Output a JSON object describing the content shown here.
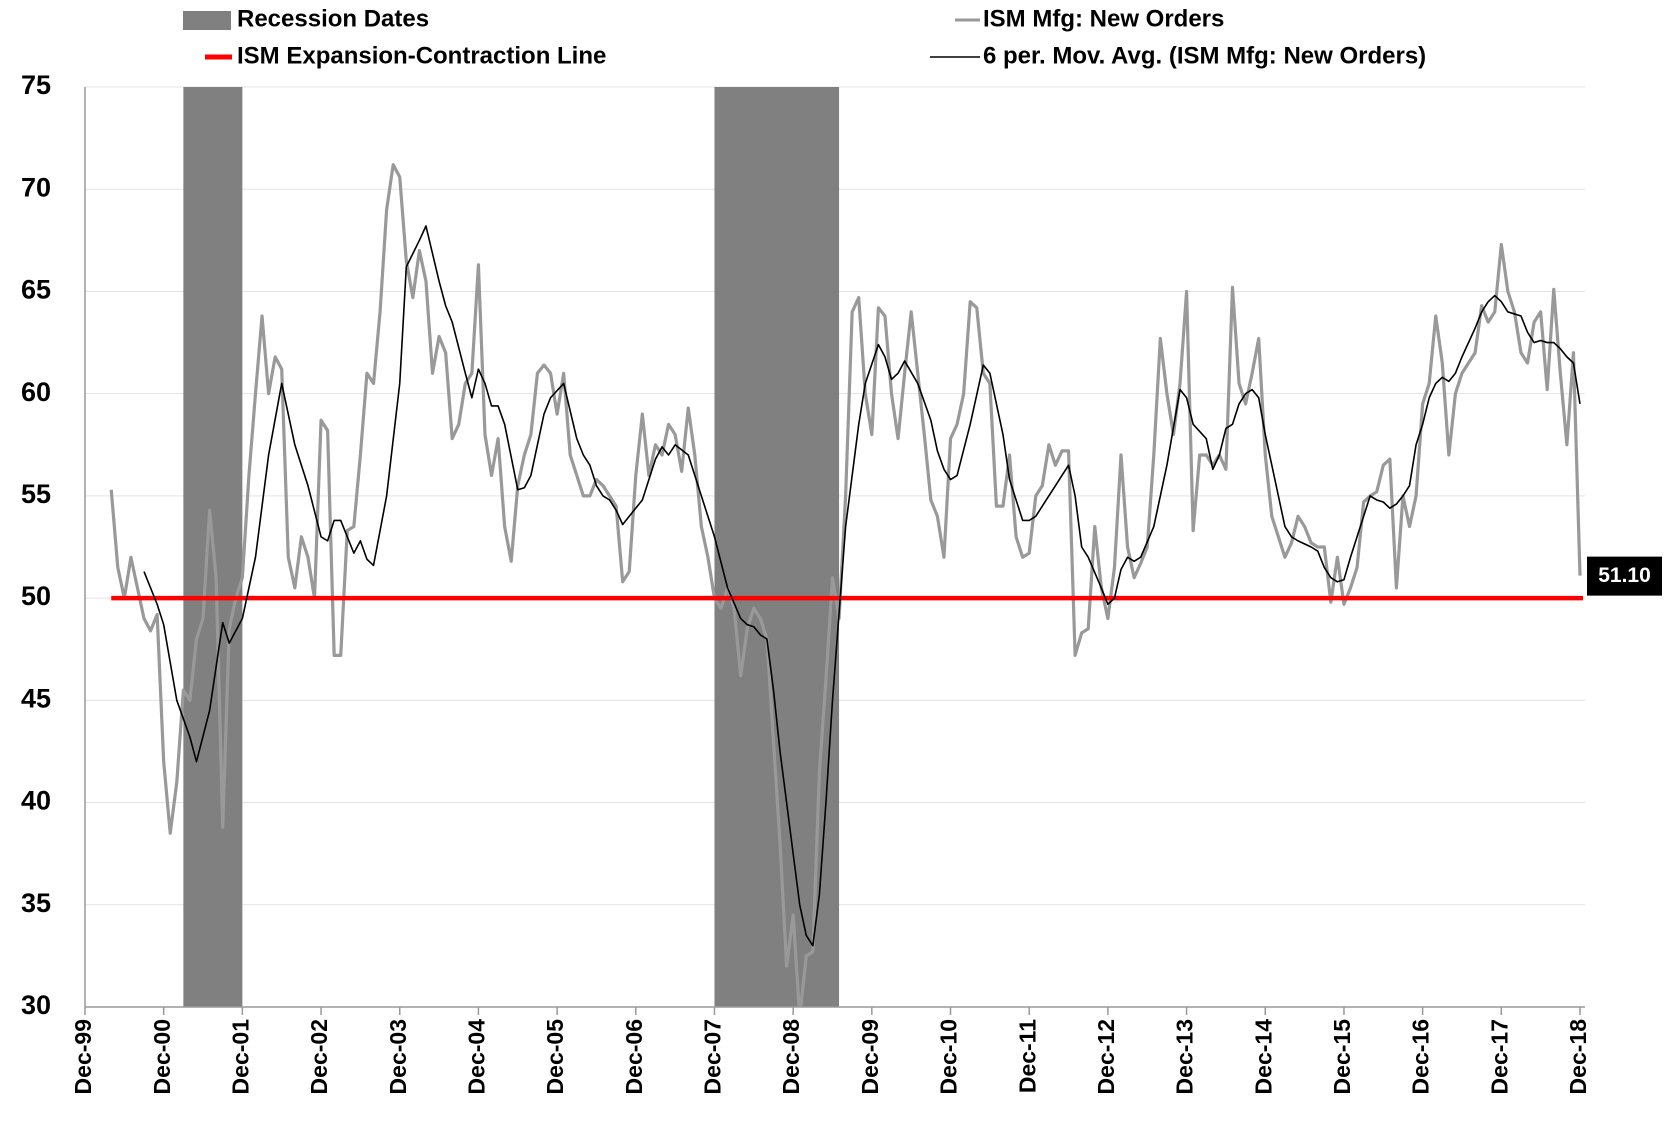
{
  "chart_data": {
    "type": "line",
    "xlim": [
      0,
      228
    ],
    "ylim": [
      30,
      75
    ],
    "yticks": [
      30,
      35,
      40,
      45,
      50,
      55,
      60,
      65,
      70,
      75
    ],
    "xticks": [
      {
        "value": 0,
        "label": "Dec-99"
      },
      {
        "value": 12,
        "label": "Dec-00"
      },
      {
        "value": 24,
        "label": "Dec-01"
      },
      {
        "value": 36,
        "label": "Dec-02"
      },
      {
        "value": 48,
        "label": "Dec-03"
      },
      {
        "value": 60,
        "label": "Dec-04"
      },
      {
        "value": 72,
        "label": "Dec-05"
      },
      {
        "value": 84,
        "label": "Dec-06"
      },
      {
        "value": 96,
        "label": "Dec-07"
      },
      {
        "value": 108,
        "label": "Dec-08"
      },
      {
        "value": 120,
        "label": "Dec-09"
      },
      {
        "value": 132,
        "label": "Dec-10"
      },
      {
        "value": 144,
        "label": "Dec-11"
      },
      {
        "value": 156,
        "label": "Dec-12"
      },
      {
        "value": 168,
        "label": "Dec-13"
      },
      {
        "value": 180,
        "label": "Dec-14"
      },
      {
        "value": 192,
        "label": "Dec-15"
      },
      {
        "value": 204,
        "label": "Dec-16"
      },
      {
        "value": 216,
        "label": "Dec-17"
      },
      {
        "value": 228,
        "label": "Dec-18"
      }
    ],
    "grid": true,
    "recessions": {
      "name": "Recession Dates",
      "color": "#808080",
      "spans": [
        [
          15,
          24
        ],
        [
          96,
          115
        ]
      ]
    },
    "reference_line": {
      "name": "ISM Expansion-Contraction Line",
      "color": "#ff0000",
      "value": 50
    },
    "series": [
      {
        "name": "ISM Mfg: New Orders",
        "color": "#999999",
        "x": [
          4,
          5,
          6,
          7,
          8,
          9,
          10,
          11,
          12,
          13,
          14,
          15,
          16,
          17,
          18,
          19,
          20,
          21,
          22,
          23,
          24,
          25,
          26,
          27,
          28,
          29,
          30,
          31,
          32,
          33,
          34,
          35,
          36,
          37,
          38,
          39,
          40,
          41,
          42,
          43,
          44,
          45,
          46,
          47,
          48,
          49,
          50,
          51,
          52,
          53,
          54,
          55,
          56,
          57,
          58,
          59,
          60,
          61,
          62,
          63,
          64,
          65,
          66,
          67,
          68,
          69,
          70,
          71,
          72,
          73,
          74,
          75,
          76,
          77,
          78,
          79,
          80,
          81,
          82,
          83,
          84,
          85,
          86,
          87,
          88,
          89,
          90,
          91,
          92,
          93,
          94,
          95,
          96,
          97,
          98,
          99,
          100,
          101,
          102,
          103,
          104,
          105,
          106,
          107,
          108,
          109,
          110,
          111,
          112,
          113,
          114,
          115,
          116,
          117,
          118,
          119,
          120,
          121,
          122,
          123,
          124,
          125,
          126,
          127,
          128,
          129,
          130,
          131,
          132,
          133,
          134,
          135,
          136,
          137,
          138,
          139,
          140,
          141,
          142,
          143,
          144,
          145,
          146,
          147,
          148,
          149,
          150,
          151,
          152,
          153,
          154,
          155,
          156,
          157,
          158,
          159,
          160,
          161,
          162,
          163,
          164,
          165,
          166,
          167,
          168,
          169,
          170,
          171,
          172,
          173,
          174,
          175,
          176,
          177,
          178,
          179,
          180,
          181,
          182,
          183,
          184,
          185,
          186,
          187,
          188,
          189,
          190,
          191,
          192,
          193,
          194,
          195,
          196,
          197,
          198,
          199,
          200,
          201,
          202,
          203,
          204,
          205,
          206,
          207,
          208,
          209,
          210,
          211,
          212,
          213,
          214,
          215,
          216,
          217,
          218,
          219,
          220,
          221,
          222,
          223,
          224,
          225,
          226,
          227,
          228
        ],
        "values": [
          55.3,
          51.5,
          50,
          52,
          50.5,
          49,
          48.4,
          49.2,
          42,
          38.5,
          41,
          45.5,
          45,
          48,
          49,
          54.3,
          51,
          38.8,
          48.5,
          50,
          51,
          56,
          60,
          63.8,
          60,
          61.8,
          61.2,
          52,
          50.5,
          53,
          52,
          50,
          58.7,
          58.2,
          47.2,
          47.2,
          53.3,
          53.5,
          57,
          61,
          60.5,
          64,
          69,
          71.2,
          70.6,
          66.5,
          64.7,
          67,
          65.5,
          61,
          62.8,
          62,
          57.8,
          58.5,
          60.5,
          61,
          66.3,
          58,
          56,
          57.8,
          53.5,
          51.8,
          55.5,
          57,
          58,
          61,
          61.4,
          61,
          59,
          61,
          57,
          56,
          55,
          55,
          55.8,
          55.5,
          55,
          54.5,
          50.8,
          51.3,
          56,
          59,
          56,
          57.5,
          57,
          58.5,
          58,
          56.2,
          59.3,
          57,
          53.5,
          52,
          50,
          49.5,
          50.5,
          49.5,
          46.2,
          48.5,
          49.5,
          49,
          48,
          43,
          38,
          32,
          34.5,
          29.5,
          32.5,
          32.7,
          41.5,
          46,
          51,
          49,
          55,
          64,
          64.7,
          60,
          58,
          64.2,
          63.8,
          60,
          57.8,
          61,
          64,
          61,
          58,
          54.8,
          54,
          52,
          57.8,
          58.5,
          60,
          64.5,
          64.2,
          61,
          60.5,
          54.5,
          54.5,
          57,
          53,
          52,
          52.2,
          55,
          55.5,
          57.5,
          56.5,
          57.2,
          57.2,
          47.2,
          48.3,
          48.5,
          53.5,
          50.5,
          49,
          51.5,
          57,
          52.5,
          51,
          51.7,
          52.5,
          57,
          62.7,
          60,
          58,
          60.5,
          65,
          53.3,
          57,
          57,
          56.5,
          57,
          56.3,
          65.2,
          60.5,
          59.5,
          61,
          62.7,
          57,
          54,
          53,
          52,
          52.7,
          54,
          53.5,
          52.7,
          52.5,
          52.5,
          49.8,
          52,
          49.7,
          50.5,
          51.5,
          54.7,
          55,
          55.2,
          56.5,
          56.8,
          50.5,
          55,
          53.5,
          55,
          59.5,
          60.5,
          63.8,
          61.5,
          57,
          60,
          61,
          61.5,
          62,
          64.3,
          63.5,
          64,
          67.3,
          65,
          64,
          62,
          61.5,
          63.5,
          64,
          60.2,
          65.1,
          61,
          57.5,
          62,
          51.1
        ]
      },
      {
        "name": "6 per. Mov. Avg. (ISM Mfg: New Orders)",
        "color": "#000000",
        "x": [
          9,
          11,
          12,
          14,
          16,
          17,
          19,
          21,
          22,
          24,
          26,
          28,
          30,
          32,
          34,
          36,
          37,
          38,
          39,
          41,
          42,
          43,
          44,
          46,
          48,
          49,
          51,
          52,
          54,
          55,
          56,
          58,
          59,
          60,
          61,
          62,
          63,
          64,
          66,
          67,
          68,
          70,
          71,
          73,
          75,
          76,
          77,
          78,
          79,
          80,
          81,
          82,
          84,
          85,
          87,
          88,
          89,
          90,
          92,
          94,
          96,
          98,
          100,
          101,
          102,
          103,
          104,
          105,
          106,
          107,
          108,
          109,
          110,
          111,
          112,
          113,
          114,
          116,
          118,
          119,
          121,
          122,
          123,
          124,
          125,
          127,
          129,
          130,
          131,
          132,
          133,
          135,
          137,
          138,
          140,
          141,
          143,
          144,
          145,
          146,
          148,
          150,
          151,
          152,
          153,
          155,
          156,
          157,
          158,
          159,
          160,
          161,
          163,
          165,
          167,
          168,
          169,
          171,
          172,
          173,
          174,
          175,
          176,
          177,
          178,
          179,
          180,
          182,
          183,
          184,
          185,
          187,
          188,
          189,
          190,
          191,
          192,
          193,
          194,
          195,
          196,
          197,
          198,
          199,
          200,
          201,
          202,
          203,
          204,
          205,
          206,
          207,
          208,
          209,
          210,
          211,
          212,
          213,
          214,
          215,
          216,
          217,
          218,
          219,
          220,
          221,
          222,
          223,
          224,
          225,
          226,
          227,
          228
        ],
        "values": [
          51.3,
          49.7,
          48.7,
          45,
          43.2,
          42,
          44.5,
          48.8,
          47.8,
          49,
          52,
          57,
          60.5,
          57.5,
          55.5,
          53,
          52.8,
          53.8,
          53.8,
          52.2,
          52.8,
          51.9,
          51.6,
          55,
          60.5,
          66.2,
          67.5,
          68.2,
          65.5,
          64.3,
          63.5,
          61,
          59.8,
          61.2,
          60.5,
          59.4,
          59.4,
          58.5,
          55.3,
          55.4,
          56,
          59,
          59.8,
          60.5,
          57.8,
          57,
          56.5,
          55.5,
          55,
          54.8,
          54.3,
          53.6,
          54.4,
          54.8,
          56.8,
          57.4,
          57,
          57.5,
          57,
          55,
          53,
          50.5,
          49,
          48.7,
          48.6,
          48.2,
          48,
          45.5,
          42.5,
          40,
          37.5,
          35,
          33.5,
          33,
          35.5,
          40,
          45,
          53.5,
          58.5,
          60.5,
          62.4,
          61.8,
          60.7,
          61,
          61.6,
          60.5,
          58.7,
          57.2,
          56.3,
          55.8,
          56,
          58.5,
          61.4,
          61,
          58,
          55.8,
          53.8,
          53.8,
          54,
          54.5,
          55.5,
          56.5,
          55,
          52.5,
          52,
          50.5,
          49.7,
          50,
          51.4,
          52,
          51.8,
          52,
          53.5,
          56.5,
          60.2,
          59.8,
          58.5,
          57.8,
          56.3,
          57,
          58.3,
          58.5,
          59.5,
          60,
          60.2,
          59.8,
          58,
          55,
          53.5,
          53,
          52.8,
          52.5,
          52.3,
          51.5,
          51,
          50.8,
          50.9,
          52,
          53,
          54,
          55,
          54.8,
          54.7,
          54.4,
          54.6,
          55,
          55.5,
          57.5,
          58.5,
          59.8,
          60.5,
          60.8,
          60.6,
          61,
          61.8,
          62.5,
          63.2,
          64,
          64.5,
          64.8,
          64.5,
          64,
          63.9,
          63.8,
          63,
          62.5,
          62.6,
          62.5,
          62.5,
          62.2,
          61.8,
          61.5,
          59.5
        ]
      }
    ],
    "annotation": {
      "label": "51.10",
      "value": 51.1,
      "x": 228
    }
  }
}
